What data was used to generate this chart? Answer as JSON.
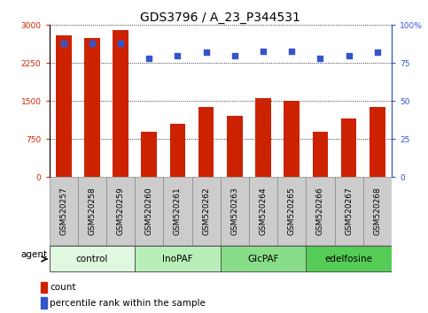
{
  "title": "GDS3796 / A_23_P344531",
  "samples": [
    "GSM520257",
    "GSM520258",
    "GSM520259",
    "GSM520260",
    "GSM520261",
    "GSM520262",
    "GSM520263",
    "GSM520264",
    "GSM520265",
    "GSM520266",
    "GSM520267",
    "GSM520268"
  ],
  "counts": [
    2800,
    2750,
    2900,
    900,
    1050,
    1380,
    1200,
    1560,
    1500,
    900,
    1150,
    1380
  ],
  "percentiles": [
    88,
    88,
    88,
    78,
    80,
    82,
    80,
    83,
    83,
    78,
    80,
    82
  ],
  "bar_color": "#cc2200",
  "dot_color": "#3355cc",
  "ylim_left": [
    0,
    3000
  ],
  "ylim_right": [
    0,
    100
  ],
  "yticks_left": [
    0,
    750,
    1500,
    2250,
    3000
  ],
  "yticks_right": [
    0,
    25,
    50,
    75,
    100
  ],
  "groups": [
    {
      "label": "control",
      "start": 0,
      "end": 3,
      "color": "#e0f8e0"
    },
    {
      "label": "InoPAF",
      "start": 3,
      "end": 6,
      "color": "#b8eeb8"
    },
    {
      "label": "GlcPAF",
      "start": 6,
      "end": 9,
      "color": "#88dd88"
    },
    {
      "label": "edelfosine",
      "start": 9,
      "end": 12,
      "color": "#55cc55"
    }
  ],
  "agent_label": "agent",
  "legend_count_label": "count",
  "legend_pct_label": "percentile rank within the sample",
  "title_fontsize": 10,
  "tick_fontsize": 6.5,
  "label_fontsize": 7.5,
  "ticklabel_box_color": "#cccccc",
  "plot_bg": "#ffffff"
}
